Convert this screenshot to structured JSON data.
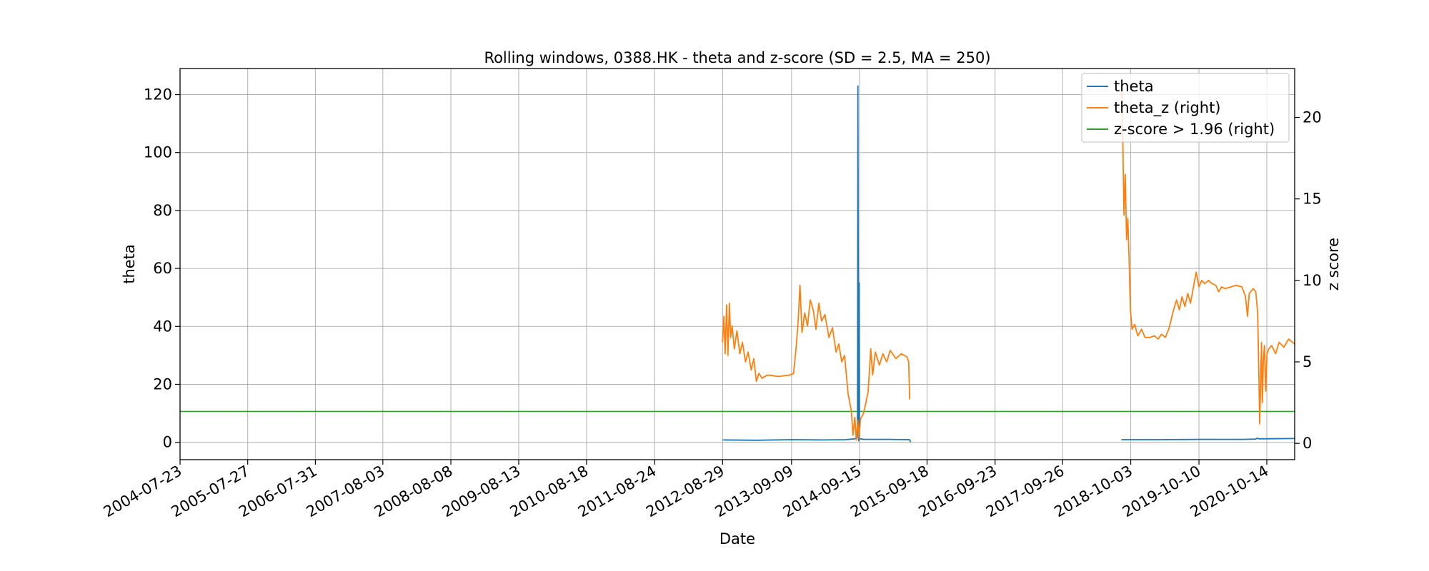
{
  "chart_data": {
    "type": "line",
    "title": "Rolling windows, 0388.HK - theta and z-score (SD = 2.5, MA = 250)",
    "xlabel": "Date",
    "ylabel": "theta",
    "y2label": "z score",
    "xlim": [
      "2004-07-23",
      "2021-03-15"
    ],
    "ylim": [
      -6,
      129
    ],
    "y2lim": [
      -1,
      23
    ],
    "x_tick_labels": [
      "2004-07-23",
      "2005-07-27",
      "2006-07-31",
      "2007-08-03",
      "2008-08-08",
      "2009-08-13",
      "2010-08-18",
      "2011-08-24",
      "2012-08-29",
      "2013-09-09",
      "2014-09-15",
      "2015-09-18",
      "2016-09-23",
      "2017-09-26",
      "2018-10-03",
      "2019-10-10",
      "2020-10-14"
    ],
    "y_ticks": [
      0,
      20,
      40,
      60,
      80,
      100,
      120
    ],
    "y2_ticks": [
      0,
      5,
      10,
      15,
      20
    ],
    "grid": true,
    "legend_position": "top-right",
    "colors": {
      "theta": "#1f77b4",
      "theta_z": "#ff7f0e",
      "zline": "#2ca02c"
    },
    "series": [
      {
        "name": "theta",
        "axis": "left",
        "color": "#1f77b4",
        "segments": [
          [
            [
              "2012-08-29",
              0.8
            ],
            [
              "2013-03-01",
              0.7
            ],
            [
              "2013-09-09",
              0.9
            ],
            [
              "2014-03-01",
              0.8
            ],
            [
              "2014-07-01",
              0.9
            ],
            [
              "2014-08-20",
              1.2
            ],
            [
              "2014-09-01",
              1.5
            ],
            [
              "2014-09-04",
              10
            ],
            [
              "2014-09-06",
              123
            ],
            [
              "2014-09-08",
              55
            ],
            [
              "2014-09-09",
              1
            ],
            [
              "2014-09-11",
              0.5
            ],
            [
              "2014-09-13",
              55
            ],
            [
              "2014-09-15",
              1.2
            ],
            [
              "2014-10-15",
              1.0
            ],
            [
              "2015-03-01",
              1.0
            ],
            [
              "2015-06-15",
              0.9
            ],
            [
              "2015-06-20",
              0.0
            ]
          ],
          [
            [
              "2018-08-13",
              0.9
            ],
            [
              "2019-03-01",
              0.9
            ],
            [
              "2019-10-10",
              1.0
            ],
            [
              "2020-06-01",
              1.0
            ],
            [
              "2020-08-15",
              1.1
            ],
            [
              "2020-08-20",
              1.4
            ],
            [
              "2020-09-01",
              1.2
            ],
            [
              "2021-03-15",
              1.3
            ]
          ]
        ]
      },
      {
        "name": "theta_z (right)",
        "axis": "right",
        "color": "#ff7f0e",
        "segments": [
          [
            [
              "2012-08-29",
              6.2
            ],
            [
              "2012-09-05",
              7.8
            ],
            [
              "2012-09-12",
              5.5
            ],
            [
              "2012-09-20",
              8.5
            ],
            [
              "2012-09-27",
              5.4
            ],
            [
              "2012-10-05",
              8.6
            ],
            [
              "2012-10-12",
              6.5
            ],
            [
              "2012-10-20",
              7.2
            ],
            [
              "2012-11-01",
              5.8
            ],
            [
              "2012-11-15",
              6.9
            ],
            [
              "2012-12-01",
              5.5
            ],
            [
              "2012-12-15",
              6.2
            ],
            [
              "2013-01-01",
              5.0
            ],
            [
              "2013-01-15",
              5.6
            ],
            [
              "2013-02-01",
              4.5
            ],
            [
              "2013-02-15",
              5.2
            ],
            [
              "2013-03-01",
              3.8
            ],
            [
              "2013-03-15",
              4.3
            ],
            [
              "2013-04-01",
              4.0
            ],
            [
              "2013-05-01",
              4.2
            ],
            [
              "2013-07-01",
              4.1
            ],
            [
              "2013-09-01",
              4.2
            ],
            [
              "2013-09-20",
              4.3
            ],
            [
              "2013-10-05",
              6.0
            ],
            [
              "2013-10-15",
              7.5
            ],
            [
              "2013-10-25",
              9.7
            ],
            [
              "2013-11-05",
              6.8
            ],
            [
              "2013-11-20",
              8.0
            ],
            [
              "2013-12-05",
              7.2
            ],
            [
              "2013-12-20",
              8.8
            ],
            [
              "2014-01-05",
              8.2
            ],
            [
              "2014-01-20",
              7.0
            ],
            [
              "2014-02-05",
              8.6
            ],
            [
              "2014-02-20",
              7.5
            ],
            [
              "2014-03-10",
              7.9
            ],
            [
              "2014-04-01",
              6.5
            ],
            [
              "2014-04-20",
              7.1
            ],
            [
              "2014-05-10",
              5.6
            ],
            [
              "2014-05-25",
              6.1
            ],
            [
              "2014-06-10",
              5.0
            ],
            [
              "2014-06-25",
              5.4
            ],
            [
              "2014-07-15",
              3.0
            ],
            [
              "2014-08-01",
              2.0
            ],
            [
              "2014-08-10",
              0.5
            ],
            [
              "2014-08-20",
              1.6
            ],
            [
              "2014-08-28",
              0.2
            ],
            [
              "2014-09-05",
              1.4
            ],
            [
              "2014-09-12",
              0.3
            ],
            [
              "2014-09-20",
              1.5
            ],
            [
              "2014-10-05",
              1.8
            ],
            [
              "2014-10-20",
              2.5
            ],
            [
              "2014-11-01",
              3.2
            ],
            [
              "2014-11-15",
              5.8
            ],
            [
              "2014-11-25",
              4.2
            ],
            [
              "2014-12-10",
              5.6
            ],
            [
              "2015-01-01",
              4.8
            ],
            [
              "2015-01-20",
              5.5
            ],
            [
              "2015-02-10",
              5.0
            ],
            [
              "2015-03-01",
              5.7
            ],
            [
              "2015-04-01",
              5.2
            ],
            [
              "2015-05-01",
              5.5
            ],
            [
              "2015-06-01",
              5.3
            ],
            [
              "2015-06-10",
              5.0
            ],
            [
              "2015-06-15",
              2.7
            ]
          ],
          [
            [
              "2018-08-13",
              22.3
            ],
            [
              "2018-08-20",
              19.0
            ],
            [
              "2018-08-27",
              14.0
            ],
            [
              "2018-09-03",
              16.5
            ],
            [
              "2018-09-10",
              12.5
            ],
            [
              "2018-09-17",
              13.8
            ],
            [
              "2018-09-24",
              11.2
            ],
            [
              "2018-10-01",
              8.2
            ],
            [
              "2018-10-10",
              7.0
            ],
            [
              "2018-10-25",
              7.3
            ],
            [
              "2018-11-10",
              6.6
            ],
            [
              "2018-12-01",
              7.0
            ],
            [
              "2018-12-20",
              6.5
            ],
            [
              "2019-01-15",
              6.5
            ],
            [
              "2019-02-10",
              6.6
            ],
            [
              "2019-03-01",
              6.4
            ],
            [
              "2019-03-20",
              6.7
            ],
            [
              "2019-04-10",
              6.5
            ],
            [
              "2019-05-01",
              7.1
            ],
            [
              "2019-05-20",
              8.0
            ],
            [
              "2019-06-10",
              8.8
            ],
            [
              "2019-06-25",
              8.2
            ],
            [
              "2019-07-10",
              9.0
            ],
            [
              "2019-07-25",
              8.4
            ],
            [
              "2019-08-10",
              9.2
            ],
            [
              "2019-08-25",
              8.6
            ],
            [
              "2019-09-10",
              9.6
            ],
            [
              "2019-09-25",
              10.5
            ],
            [
              "2019-10-10",
              9.6
            ],
            [
              "2019-10-25",
              10.0
            ],
            [
              "2019-11-10",
              9.8
            ],
            [
              "2019-12-01",
              10.0
            ],
            [
              "2019-12-20",
              9.8
            ],
            [
              "2020-01-10",
              9.7
            ],
            [
              "2020-01-25",
              9.3
            ],
            [
              "2020-02-10",
              9.6
            ],
            [
              "2020-03-01",
              9.5
            ],
            [
              "2020-04-01",
              9.6
            ],
            [
              "2020-05-01",
              9.7
            ],
            [
              "2020-06-01",
              9.6
            ],
            [
              "2020-06-20",
              9.0
            ],
            [
              "2020-07-01",
              7.8
            ],
            [
              "2020-07-10",
              9.2
            ],
            [
              "2020-08-01",
              9.5
            ],
            [
              "2020-08-15",
              9.3
            ],
            [
              "2020-08-25",
              8.0
            ],
            [
              "2020-09-01",
              4.0
            ],
            [
              "2020-09-05",
              1.2
            ],
            [
              "2020-09-10",
              3.5
            ],
            [
              "2020-09-15",
              6.2
            ],
            [
              "2020-09-20",
              2.5
            ],
            [
              "2020-09-25",
              5.0
            ],
            [
              "2020-10-01",
              6.0
            ],
            [
              "2020-10-08",
              3.2
            ],
            [
              "2020-10-15",
              5.5
            ],
            [
              "2020-10-25",
              5.8
            ],
            [
              "2020-11-10",
              6.0
            ],
            [
              "2020-12-01",
              5.5
            ],
            [
              "2020-12-20",
              6.2
            ],
            [
              "2021-01-15",
              5.9
            ],
            [
              "2021-02-10",
              6.4
            ],
            [
              "2021-03-15",
              6.1
            ]
          ]
        ]
      },
      {
        "name": "z-score > 1.96 (right)",
        "axis": "right",
        "color": "#2ca02c",
        "constant": 1.96
      }
    ]
  }
}
